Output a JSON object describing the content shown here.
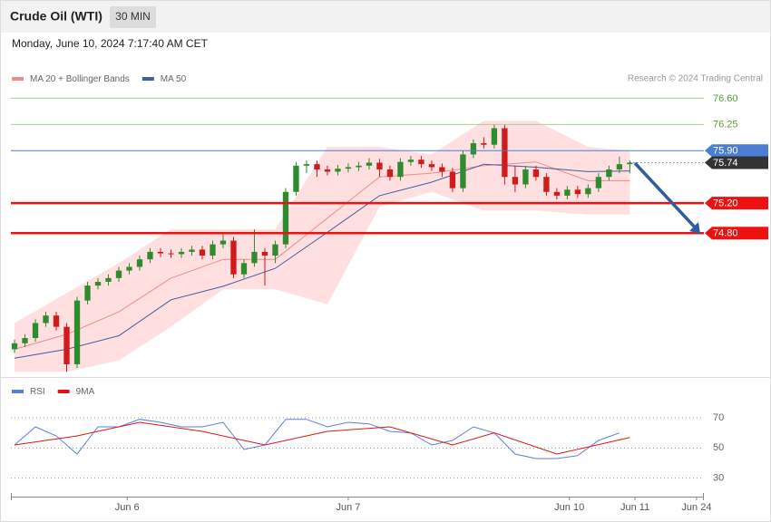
{
  "header": {
    "title": "Crude Oil (WTI)",
    "interval": "30 MIN",
    "date": "Monday, June 10, 2024 7:17:40 AM CET"
  },
  "chart_data": [
    {
      "type": "candlestick",
      "credit": "Research © 2024 Trading Central",
      "xlim": [
        -0.35,
        66.1
      ],
      "ylim": [
        72.88,
        76.75
      ],
      "up_color": "#2e8b2e",
      "down_color": "#d11a1a",
      "ohlc": [
        [
          73.25,
          73.38,
          73.2,
          73.33
        ],
        [
          73.33,
          73.45,
          73.28,
          73.4
        ],
        [
          73.4,
          73.65,
          73.35,
          73.6
        ],
        [
          73.6,
          73.75,
          73.55,
          73.7
        ],
        [
          73.7,
          73.75,
          73.5,
          73.55
        ],
        [
          73.55,
          73.6,
          72.95,
          73.05
        ],
        [
          73.05,
          73.95,
          73.0,
          73.9
        ],
        [
          73.9,
          74.15,
          73.85,
          74.1
        ],
        [
          74.1,
          74.2,
          74.05,
          74.15
        ],
        [
          74.15,
          74.25,
          74.1,
          74.2
        ],
        [
          74.2,
          74.35,
          74.15,
          74.3
        ],
        [
          74.3,
          74.4,
          74.25,
          74.35
        ],
        [
          74.35,
          74.5,
          74.3,
          74.45
        ],
        [
          74.45,
          74.6,
          74.4,
          74.55
        ],
        [
          74.55,
          74.6,
          74.48,
          74.53
        ],
        [
          74.53,
          74.58,
          74.47,
          74.52
        ],
        [
          74.52,
          74.6,
          74.47,
          74.55
        ],
        [
          74.55,
          74.63,
          74.5,
          74.58
        ],
        [
          74.58,
          74.63,
          74.45,
          74.5
        ],
        [
          74.5,
          74.7,
          74.45,
          74.65
        ],
        [
          74.65,
          74.8,
          74.6,
          74.7
        ],
        [
          74.7,
          74.75,
          74.2,
          74.25
        ],
        [
          74.25,
          74.45,
          74.2,
          74.4
        ],
        [
          74.4,
          74.85,
          74.35,
          74.55
        ],
        [
          74.55,
          74.6,
          74.1,
          74.5
        ],
        [
          74.5,
          74.7,
          74.4,
          74.65
        ],
        [
          74.65,
          75.4,
          74.6,
          75.35
        ],
        [
          75.35,
          75.75,
          75.3,
          75.7
        ],
        [
          75.7,
          75.77,
          75.6,
          75.72
        ],
        [
          75.72,
          75.77,
          75.55,
          75.65
        ],
        [
          75.65,
          75.7,
          75.57,
          75.62
        ],
        [
          75.62,
          75.71,
          75.57,
          75.66
        ],
        [
          75.66,
          75.73,
          75.61,
          75.68
        ],
        [
          75.68,
          75.75,
          75.63,
          75.7
        ],
        [
          75.7,
          75.8,
          75.65,
          75.74
        ],
        [
          75.74,
          75.79,
          75.55,
          75.65
        ],
        [
          75.65,
          75.7,
          75.5,
          75.55
        ],
        [
          75.55,
          75.8,
          75.5,
          75.75
        ],
        [
          75.75,
          75.83,
          75.7,
          75.78
        ],
        [
          75.78,
          75.83,
          75.67,
          75.72
        ],
        [
          75.72,
          75.77,
          75.63,
          75.68
        ],
        [
          75.68,
          75.73,
          75.55,
          75.62
        ],
        [
          75.62,
          75.67,
          75.35,
          75.4
        ],
        [
          75.4,
          75.9,
          75.35,
          75.85
        ],
        [
          75.85,
          76.05,
          75.8,
          76.0
        ],
        [
          76.0,
          76.08,
          75.93,
          75.98
        ],
        [
          75.98,
          76.25,
          75.93,
          76.2
        ],
        [
          76.2,
          76.25,
          75.45,
          75.55
        ],
        [
          75.55,
          75.7,
          75.35,
          75.45
        ],
        [
          75.45,
          75.7,
          75.4,
          75.65
        ],
        [
          75.65,
          75.7,
          75.5,
          75.55
        ],
        [
          75.55,
          75.6,
          75.3,
          75.35
        ],
        [
          75.35,
          75.4,
          75.25,
          75.3
        ],
        [
          75.3,
          75.43,
          75.25,
          75.38
        ],
        [
          75.38,
          75.43,
          75.27,
          75.32
        ],
        [
          75.32,
          75.45,
          75.27,
          75.4
        ],
        [
          75.4,
          75.6,
          75.35,
          75.55
        ],
        [
          75.55,
          75.7,
          75.5,
          75.65
        ],
        [
          75.65,
          75.82,
          75.6,
          75.72
        ],
        [
          75.72,
          75.77,
          75.6,
          75.74
        ]
      ],
      "series": [
        {
          "name": "MA 20 + Bollinger Bands",
          "color": "#f28b8b",
          "band_color": "#ffd9d9",
          "x": [
            0,
            5,
            10,
            15,
            20,
            25,
            30,
            35,
            40,
            45,
            50,
            55,
            59
          ],
          "values": [
            73.25,
            73.45,
            73.75,
            74.2,
            74.45,
            74.45,
            75.0,
            75.55,
            75.6,
            75.7,
            75.75,
            75.5,
            75.5
          ],
          "upper": [
            73.6,
            74.0,
            74.4,
            74.85,
            74.85,
            74.85,
            75.95,
            75.95,
            75.85,
            76.3,
            76.3,
            75.95,
            75.9
          ],
          "lower": [
            72.95,
            72.95,
            73.1,
            73.55,
            74.05,
            74.05,
            73.85,
            75.15,
            75.35,
            75.1,
            75.1,
            75.05,
            75.05
          ]
        },
        {
          "name": "MA 50",
          "color": "#3b5fa0",
          "x": [
            0,
            5,
            10,
            15,
            20,
            25,
            30,
            35,
            40,
            45,
            50,
            55,
            59
          ],
          "values": [
            73.13,
            73.25,
            73.43,
            73.91,
            74.09,
            74.33,
            74.81,
            75.3,
            75.48,
            75.72,
            75.68,
            75.62,
            75.63
          ]
        }
      ],
      "levels": [
        {
          "value": 76.6,
          "label": "76.60",
          "color": "#a8d08d",
          "text_color": "#5a9e3a",
          "boxed": false,
          "width": 1,
          "dotted": false
        },
        {
          "value": 76.25,
          "label": "76.25",
          "color": "#a8d08d",
          "text_color": "#5a9e3a",
          "boxed": false,
          "width": 1,
          "dotted": false
        },
        {
          "value": 75.9,
          "label": "75.90",
          "color": "#4a7fd4",
          "text_color": "#ffffff",
          "boxed": true,
          "width": 1,
          "dotted": false
        },
        {
          "value": 75.74,
          "label": "75.74",
          "color": "#333333",
          "text_color": "#ffffff",
          "boxed": true,
          "width": 1,
          "dotted": true
        },
        {
          "value": 75.2,
          "label": "75.20",
          "color": "#ee1111",
          "text_color": "#ffffff",
          "boxed": true,
          "width": 2.5,
          "dotted": false
        },
        {
          "value": 74.8,
          "label": "74.80",
          "color": "#ee1111",
          "text_color": "#ffffff",
          "boxed": true,
          "width": 2.5,
          "dotted": false
        }
      ]
    },
    {
      "type": "line",
      "xlim": [
        -0.35,
        66.1
      ],
      "ylim": [
        19,
        94
      ],
      "yticks": [
        70,
        50,
        30
      ],
      "grid": true,
      "xticks": [
        {
          "value": 10.8,
          "label": "Jun 6"
        },
        {
          "value": 32.0,
          "label": "Jun 7"
        },
        {
          "value": 53.2,
          "label": "Jun 10"
        },
        {
          "value": 59.5,
          "label": "Jun 11"
        },
        {
          "value": 65.4,
          "label": "Jun 24"
        }
      ],
      "series": [
        {
          "name": "RSI",
          "color": "#5b7fd6",
          "x": [
            0,
            2,
            4,
            6,
            8,
            10,
            12,
            14,
            16,
            18,
            20,
            22,
            24,
            26,
            28,
            30,
            32,
            34,
            36,
            38,
            40,
            42,
            44,
            46,
            48,
            50,
            52,
            54,
            56,
            58
          ],
          "values": [
            52,
            64,
            58,
            46,
            64,
            64,
            69,
            67,
            64,
            64,
            67,
            49,
            52,
            69,
            69,
            64,
            67,
            66,
            61,
            60,
            52,
            55,
            64,
            60,
            46,
            43,
            43,
            45,
            55,
            60
          ]
        },
        {
          "name": "9MA",
          "color": "#e01515",
          "x": [
            0,
            6,
            12,
            18,
            24,
            30,
            36,
            42,
            46,
            52,
            59
          ],
          "values": [
            52,
            58,
            67,
            61,
            52,
            61,
            64,
            52,
            60,
            46,
            57
          ]
        }
      ]
    }
  ]
}
